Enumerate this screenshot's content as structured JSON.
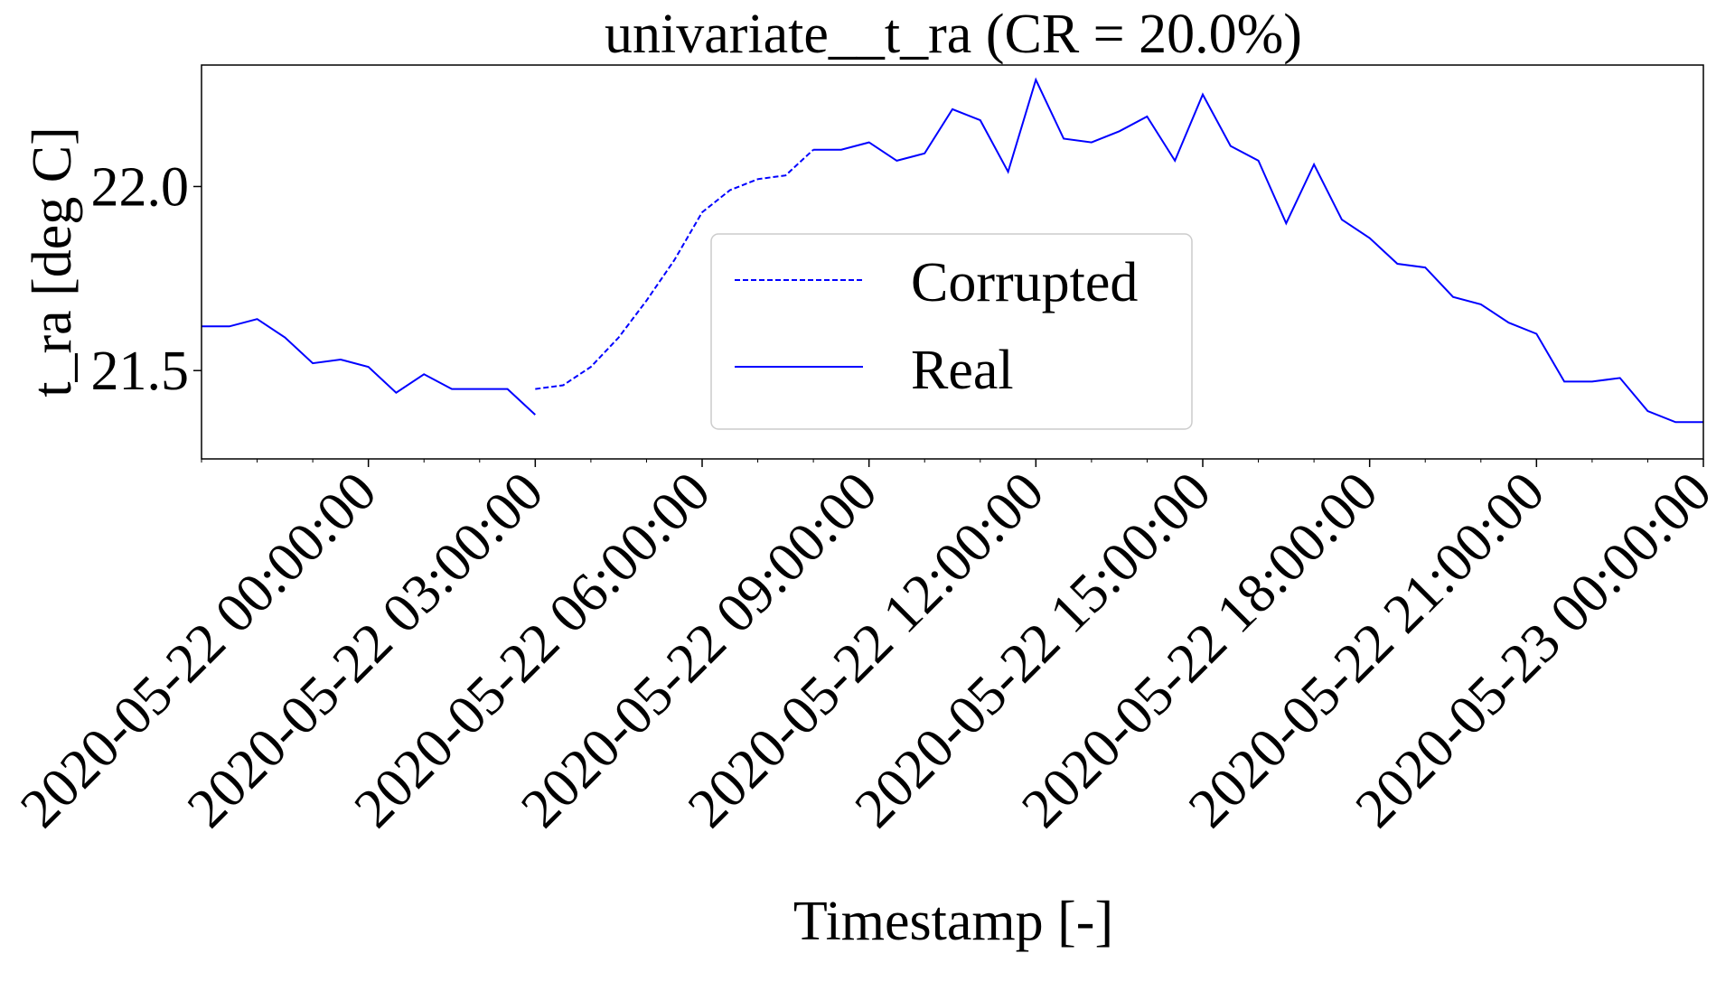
{
  "chart_data": {
    "type": "line",
    "title": "univariate__t_ra  (CR = 20.0%)",
    "xlabel": "Timestamp [-]",
    "ylabel": "t_ra  [deg C]",
    "x_range": [
      "2020-05-21 21:00:00",
      "2020-05-23 00:00:00"
    ],
    "ylim": [
      21.26,
      22.33
    ],
    "yticks": [
      21.5,
      22.0
    ],
    "xticks": [
      "2020-05-22 00:00:00",
      "2020-05-22 03:00:00",
      "2020-05-22 06:00:00",
      "2020-05-22 09:00:00",
      "2020-05-22 12:00:00",
      "2020-05-22 15:00:00",
      "2020-05-22 18:00:00",
      "2020-05-22 21:00:00",
      "2020-05-23 00:00:00"
    ],
    "legend_position": "center",
    "grid": false,
    "colors": {
      "series": "#0000ff"
    },
    "x": [
      "2020-05-21 21:00:00",
      "2020-05-21 21:30:00",
      "2020-05-21 22:00:00",
      "2020-05-21 22:30:00",
      "2020-05-21 23:00:00",
      "2020-05-21 23:30:00",
      "2020-05-22 00:00:00",
      "2020-05-22 00:30:00",
      "2020-05-22 01:00:00",
      "2020-05-22 01:30:00",
      "2020-05-22 02:00:00",
      "2020-05-22 02:30:00",
      "2020-05-22 03:00:00",
      "2020-05-22 03:30:00",
      "2020-05-22 04:00:00",
      "2020-05-22 04:30:00",
      "2020-05-22 05:00:00",
      "2020-05-22 05:30:00",
      "2020-05-22 06:00:00",
      "2020-05-22 06:30:00",
      "2020-05-22 07:00:00",
      "2020-05-22 07:30:00",
      "2020-05-22 08:00:00",
      "2020-05-22 08:30:00",
      "2020-05-22 09:00:00",
      "2020-05-22 09:30:00",
      "2020-05-22 10:00:00",
      "2020-05-22 10:30:00",
      "2020-05-22 11:00:00",
      "2020-05-22 11:30:00",
      "2020-05-22 12:00:00",
      "2020-05-22 12:30:00",
      "2020-05-22 13:00:00",
      "2020-05-22 13:30:00",
      "2020-05-22 14:00:00",
      "2020-05-22 14:30:00",
      "2020-05-22 15:00:00",
      "2020-05-22 15:30:00",
      "2020-05-22 16:00:00",
      "2020-05-22 16:30:00",
      "2020-05-22 17:00:00",
      "2020-05-22 17:30:00",
      "2020-05-22 18:00:00",
      "2020-05-22 18:30:00",
      "2020-05-22 19:00:00",
      "2020-05-22 19:30:00",
      "2020-05-22 20:00:00",
      "2020-05-22 20:30:00",
      "2020-05-22 21:00:00",
      "2020-05-22 21:30:00",
      "2020-05-22 22:00:00",
      "2020-05-22 22:30:00",
      "2020-05-22 23:00:00",
      "2020-05-22 23:30:00",
      "2020-05-23 00:00:00"
    ],
    "series": [
      {
        "name": "Corrupted",
        "style": "dashed",
        "values": [
          null,
          null,
          null,
          null,
          null,
          null,
          null,
          null,
          null,
          null,
          null,
          null,
          21.45,
          21.46,
          21.51,
          21.59,
          21.69,
          21.8,
          21.93,
          21.99,
          22.02,
          22.03,
          22.1,
          null,
          null,
          null,
          null,
          null,
          null,
          null,
          null,
          null,
          null,
          null,
          null,
          null,
          null,
          null,
          null,
          null,
          null,
          null,
          null,
          null,
          null,
          null,
          null,
          null,
          null,
          null,
          null,
          null,
          null,
          null,
          null
        ]
      },
      {
        "name": "Real",
        "style": "solid",
        "values": [
          21.62,
          21.62,
          21.64,
          21.59,
          21.52,
          21.53,
          21.51,
          21.44,
          21.49,
          21.45,
          21.45,
          21.45,
          21.38,
          null,
          null,
          null,
          null,
          null,
          null,
          null,
          null,
          null,
          22.1,
          22.1,
          22.12,
          22.07,
          22.09,
          22.21,
          22.18,
          22.04,
          22.29,
          22.13,
          22.12,
          22.15,
          22.19,
          22.07,
          22.25,
          22.11,
          22.07,
          21.9,
          22.06,
          21.91,
          21.86,
          21.79,
          21.78,
          21.7,
          21.68,
          21.63,
          21.6,
          21.47,
          21.47,
          21.48,
          21.39,
          21.36,
          21.36
        ]
      }
    ]
  }
}
